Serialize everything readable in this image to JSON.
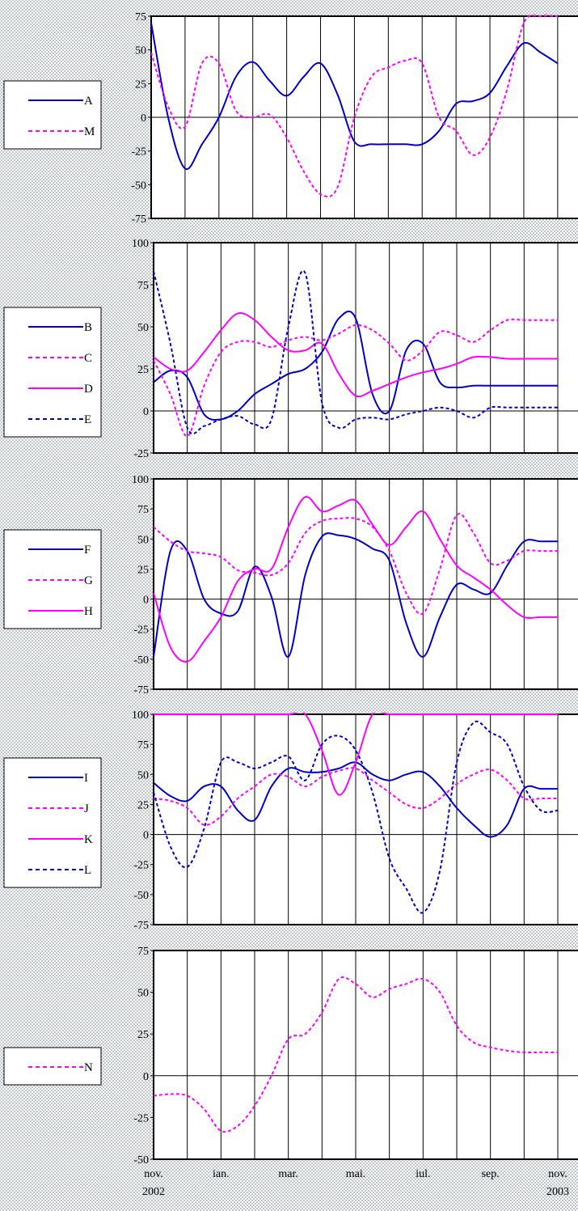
{
  "chart_data": [
    {
      "type": "line",
      "ylim": [
        -75,
        75
      ],
      "yticks": [
        -75,
        -50,
        -25,
        0,
        25,
        50,
        75
      ],
      "legend_placement": "left",
      "series": [
        {
          "name": "A",
          "color": "#0000cc",
          "dash": "solid",
          "x": [
            0,
            0.5,
            1,
            1.5,
            2,
            2.5,
            3,
            3.5,
            4,
            4.5,
            5,
            5.5,
            6,
            6.5,
            7,
            7.5,
            8,
            8.5,
            9,
            9.5,
            10,
            10.5,
            11,
            11.5,
            12
          ],
          "y": [
            70,
            0,
            -38,
            -20,
            0,
            30,
            41,
            27,
            16,
            30,
            40,
            17,
            -18,
            -20,
            -20,
            -20,
            -20,
            -10,
            10,
            12,
            18,
            38,
            55,
            48,
            40
          ]
        },
        {
          "name": "M",
          "color": "#ff00ff",
          "dash": "dashed",
          "x": [
            0,
            0.5,
            1,
            1.5,
            2,
            2.5,
            3,
            3.5,
            4,
            4.5,
            5,
            5.5,
            6,
            6.5,
            7,
            7.5,
            8,
            8.5,
            9,
            9.5,
            10,
            10.5,
            11,
            11.5,
            12
          ],
          "y": [
            48,
            8,
            -7,
            40,
            40,
            5,
            0,
            2,
            -15,
            -40,
            -57,
            -52,
            0,
            30,
            37,
            42,
            40,
            0,
            -10,
            -28,
            -15,
            20,
            70,
            75,
            75
          ]
        }
      ]
    },
    {
      "type": "line",
      "ylim": [
        -25,
        100
      ],
      "yticks": [
        -25,
        0,
        25,
        50,
        75,
        100
      ],
      "legend_placement": "left",
      "series": [
        {
          "name": "B",
          "color": "#0000cc",
          "dash": "solid",
          "x": [
            0,
            0.5,
            1,
            1.5,
            2,
            2.5,
            3,
            3.5,
            4,
            4.5,
            5,
            5.5,
            6,
            6.5,
            7,
            7.5,
            8,
            8.5,
            9,
            9.5,
            10,
            10.5,
            11,
            11.5,
            12
          ],
          "y": [
            17,
            24,
            20,
            -2,
            -5,
            0,
            10,
            16,
            22,
            25,
            35,
            55,
            55,
            10,
            0,
            36,
            40,
            17,
            14,
            15,
            15,
            15,
            15,
            15,
            15
          ]
        },
        {
          "name": "C",
          "color": "#ff00ff",
          "dash": "dashed",
          "x": [
            0,
            0.5,
            1,
            1.5,
            2,
            2.5,
            3,
            3.5,
            4,
            4.5,
            5,
            5.5,
            6,
            6.5,
            7,
            7.5,
            8,
            8.5,
            9,
            9.5,
            10,
            10.5,
            11,
            11.5,
            12
          ],
          "y": [
            30,
            10,
            -15,
            15,
            35,
            41,
            41,
            38,
            42,
            44,
            42,
            46,
            51,
            48,
            40,
            30,
            36,
            47,
            45,
            41,
            48,
            54,
            54,
            54,
            54
          ]
        },
        {
          "name": "D",
          "color": "#ff00ff",
          "dash": "solid",
          "x": [
            0,
            0.5,
            1,
            1.5,
            2,
            2.5,
            3,
            3.5,
            4,
            4.5,
            5,
            5.5,
            6,
            6.5,
            7,
            7.5,
            8,
            8.5,
            9,
            9.5,
            10,
            10.5,
            11,
            11.5,
            12
          ],
          "y": [
            32,
            25,
            24,
            35,
            48,
            58,
            54,
            44,
            36,
            36,
            40,
            22,
            9,
            12,
            16,
            20,
            23,
            25,
            28,
            32,
            32,
            31,
            31,
            31,
            31
          ]
        },
        {
          "name": "E",
          "color": "#0000cc",
          "dash": "dashed",
          "x": [
            0,
            0.5,
            1,
            1.5,
            2,
            2.5,
            3,
            3.5,
            4,
            4.5,
            5,
            5.5,
            6,
            6.5,
            7,
            7.5,
            8,
            8.5,
            9,
            9.5,
            10,
            10.5,
            11,
            11.5,
            12
          ],
          "y": [
            83,
            40,
            -10,
            -9,
            -5,
            -3,
            -8,
            -5,
            50,
            82,
            5,
            -10,
            -5,
            -4,
            -5,
            -2,
            0,
            2,
            0,
            -4,
            2,
            2,
            2,
            2,
            2
          ]
        }
      ]
    },
    {
      "type": "line",
      "ylim": [
        -75,
        100
      ],
      "yticks": [
        -75,
        -50,
        -25,
        0,
        25,
        50,
        75,
        100
      ],
      "legend_placement": "left",
      "series": [
        {
          "name": "F",
          "color": "#0000cc",
          "dash": "solid",
          "x": [
            0,
            0.5,
            1,
            1.5,
            2,
            2.5,
            3,
            3.5,
            4,
            4.5,
            5,
            5.5,
            6,
            6.5,
            7,
            7.5,
            8,
            8.5,
            9,
            9.5,
            10,
            10.5,
            11,
            11.5,
            12
          ],
          "y": [
            -48,
            40,
            40,
            0,
            -12,
            -10,
            27,
            2,
            -48,
            20,
            52,
            53,
            50,
            42,
            32,
            -20,
            -48,
            -15,
            12,
            8,
            5,
            28,
            48,
            48,
            48
          ]
        },
        {
          "name": "G",
          "color": "#ff00ff",
          "dash": "dashed",
          "x": [
            0,
            0.5,
            1,
            1.5,
            2,
            2.5,
            3,
            3.5,
            4,
            4.5,
            5,
            5.5,
            6,
            6.5,
            7,
            7.5,
            8,
            8.5,
            9,
            9.5,
            10,
            10.5,
            11,
            11.5,
            12
          ],
          "y": [
            60,
            48,
            40,
            38,
            35,
            24,
            22,
            20,
            30,
            55,
            65,
            67,
            67,
            60,
            40,
            5,
            -12,
            25,
            70,
            55,
            30,
            32,
            40,
            40,
            40
          ]
        },
        {
          "name": "H",
          "color": "#ff00ff",
          "dash": "solid",
          "x": [
            0,
            0.5,
            1,
            1.5,
            2,
            2.5,
            3,
            3.5,
            4,
            4.5,
            5,
            5.5,
            6,
            6.5,
            7,
            7.5,
            8,
            8.5,
            9,
            9.5,
            10,
            10.5,
            11,
            11.5,
            12
          ],
          "y": [
            5,
            -40,
            -52,
            -35,
            -15,
            15,
            25,
            25,
            60,
            85,
            73,
            78,
            82,
            62,
            45,
            60,
            73,
            50,
            28,
            18,
            8,
            -5,
            -15,
            -15,
            -15
          ]
        }
      ]
    },
    {
      "type": "line",
      "ylim": [
        -75,
        100
      ],
      "yticks": [
        -75,
        -50,
        -25,
        0,
        25,
        50,
        75,
        100
      ],
      "legend_placement": "left",
      "series": [
        {
          "name": "I",
          "color": "#0000cc",
          "dash": "solid",
          "x": [
            0,
            0.5,
            1,
            1.5,
            2,
            2.5,
            3,
            3.5,
            4,
            4.5,
            5,
            5.5,
            6,
            6.5,
            7,
            7.5,
            8,
            8.5,
            9,
            9.5,
            10,
            10.5,
            11,
            11.5,
            12
          ],
          "y": [
            43,
            32,
            28,
            40,
            40,
            20,
            12,
            40,
            55,
            52,
            52,
            55,
            60,
            50,
            45,
            50,
            52,
            40,
            22,
            8,
            -2,
            8,
            38,
            38,
            38
          ]
        },
        {
          "name": "J",
          "color": "#ff00ff",
          "dash": "dashed",
          "x": [
            0,
            0.5,
            1,
            1.5,
            2,
            2.5,
            3,
            3.5,
            4,
            4.5,
            5,
            5.5,
            6,
            6.5,
            7,
            7.5,
            8,
            8.5,
            9,
            9.5,
            10,
            10.5,
            11,
            11.5,
            12
          ],
          "y": [
            30,
            28,
            22,
            8,
            15,
            30,
            40,
            50,
            48,
            40,
            48,
            53,
            55,
            45,
            35,
            25,
            22,
            30,
            42,
            50,
            54,
            45,
            30,
            30,
            30
          ]
        },
        {
          "name": "K",
          "color": "#ff00ff",
          "dash": "solid",
          "x": [
            0,
            1,
            2,
            3,
            4,
            4.5,
            5,
            5.5,
            6,
            6.5,
            7,
            8,
            9,
            10,
            11,
            12
          ],
          "y": [
            100,
            100,
            100,
            100,
            100,
            100,
            70,
            33,
            60,
            100,
            100,
            100,
            100,
            100,
            100,
            100
          ]
        },
        {
          "name": "L",
          "color": "#0000cc",
          "dash": "dashed",
          "x": [
            0,
            0.5,
            1,
            1.5,
            2,
            2.5,
            3,
            3.5,
            4,
            4.5,
            5,
            5.5,
            6,
            6.5,
            7,
            7.5,
            8,
            8.5,
            9,
            9.5,
            10,
            10.5,
            11,
            11.5,
            12
          ],
          "y": [
            35,
            -10,
            -27,
            5,
            60,
            60,
            55,
            60,
            65,
            45,
            75,
            82,
            70,
            35,
            -20,
            -45,
            -65,
            -30,
            60,
            93,
            85,
            75,
            40,
            20,
            20
          ]
        }
      ]
    },
    {
      "type": "line",
      "ylim": [
        -50,
        75
      ],
      "yticks": [
        -50,
        -25,
        0,
        25,
        50,
        75
      ],
      "legend_placement": "left",
      "xtick_labels": [
        [
          "nov.",
          "2002"
        ],
        [
          "ian.",
          ""
        ],
        [
          "mar.",
          ""
        ],
        [
          "mai.",
          ""
        ],
        [
          "iul.",
          ""
        ],
        [
          "sep.",
          ""
        ],
        [
          "nov.",
          "2003"
        ]
      ],
      "series": [
        {
          "name": "N",
          "color": "#ff00ff",
          "dash": "dashed",
          "x": [
            0,
            0.5,
            1,
            1.5,
            2,
            2.5,
            3,
            3.5,
            4,
            4.5,
            5,
            5.5,
            6,
            6.5,
            7,
            7.5,
            8,
            8.5,
            9,
            9.5,
            10,
            10.5,
            11,
            11.5,
            12
          ],
          "y": [
            -12,
            -11,
            -12,
            -20,
            -33,
            -30,
            -18,
            0,
            22,
            25,
            38,
            58,
            55,
            47,
            52,
            55,
            58,
            50,
            30,
            20,
            17,
            15,
            14,
            14,
            14
          ]
        }
      ]
    }
  ]
}
